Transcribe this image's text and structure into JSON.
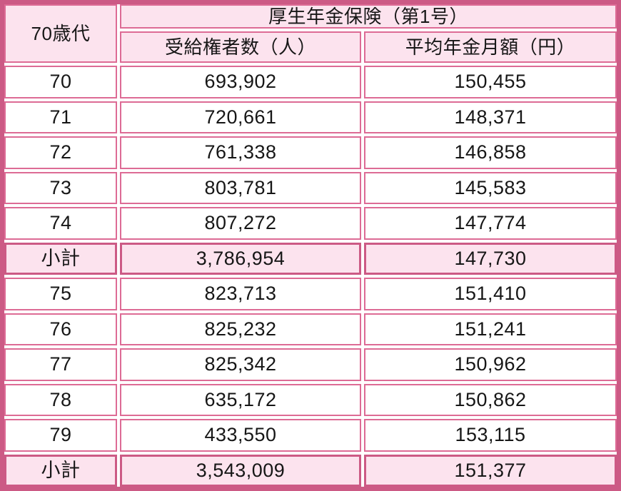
{
  "colors": {
    "frame-pink": "#cc5a85",
    "border-pink": "#dd6b95",
    "bg-pink": "#fce3ee",
    "edge-pink": "#f3c2d8",
    "text": "#161616"
  },
  "table": {
    "age_group_header": "70歳代",
    "insurance_header": "厚生年金保険（第1号）",
    "col_beneficiaries": "受給権者数（人）",
    "col_avg_pension": "平均年金月額（円）",
    "subtotal_label": "小計",
    "rows": [
      {
        "age": "70",
        "beneficiaries": "693,902",
        "avg_pension": "150,455",
        "is_subtotal": false
      },
      {
        "age": "71",
        "beneficiaries": "720,661",
        "avg_pension": "148,371",
        "is_subtotal": false
      },
      {
        "age": "72",
        "beneficiaries": "761,338",
        "avg_pension": "146,858",
        "is_subtotal": false
      },
      {
        "age": "73",
        "beneficiaries": "803,781",
        "avg_pension": "145,583",
        "is_subtotal": false
      },
      {
        "age": "74",
        "beneficiaries": "807,272",
        "avg_pension": "147,774",
        "is_subtotal": false
      },
      {
        "age": "小計",
        "beneficiaries": "3,786,954",
        "avg_pension": "147,730",
        "is_subtotal": true
      },
      {
        "age": "75",
        "beneficiaries": "823,713",
        "avg_pension": "151,410",
        "is_subtotal": false
      },
      {
        "age": "76",
        "beneficiaries": "825,232",
        "avg_pension": "151,241",
        "is_subtotal": false
      },
      {
        "age": "77",
        "beneficiaries": "825,342",
        "avg_pension": "150,962",
        "is_subtotal": false
      },
      {
        "age": "78",
        "beneficiaries": "635,172",
        "avg_pension": "150,862",
        "is_subtotal": false
      },
      {
        "age": "79",
        "beneficiaries": "433,550",
        "avg_pension": "153,115",
        "is_subtotal": false
      },
      {
        "age": "小計",
        "beneficiaries": "3,543,009",
        "avg_pension": "151,377",
        "is_subtotal": true
      }
    ]
  },
  "chart_data": {
    "type": "table",
    "title": "厚生年金保険（第1号） 70歳代",
    "columns": [
      "70歳代",
      "受給権者数（人）",
      "平均年金月額（円）"
    ],
    "rows": [
      [
        "70",
        693902,
        150455
      ],
      [
        "71",
        720661,
        148371
      ],
      [
        "72",
        761338,
        146858
      ],
      [
        "73",
        803781,
        145583
      ],
      [
        "74",
        807272,
        147774
      ],
      [
        "小計",
        3786954,
        147730
      ],
      [
        "75",
        823713,
        151410
      ],
      [
        "76",
        825232,
        151241
      ],
      [
        "77",
        825342,
        150962
      ],
      [
        "78",
        635172,
        150862
      ],
      [
        "79",
        433550,
        153115
      ],
      [
        "小計",
        3543009,
        151377
      ]
    ]
  }
}
